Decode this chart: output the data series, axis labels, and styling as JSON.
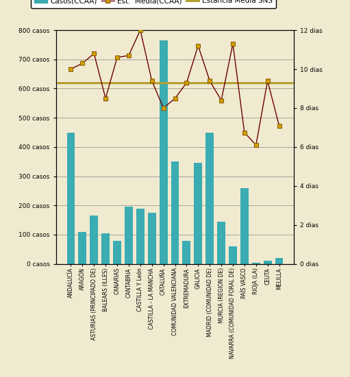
{
  "categories": [
    "ANDALUCÍA",
    "ARAGÓN",
    "ASTURIAS (PRINCIPADO DE)",
    "BALEARS (ILLES)",
    "CANARIAS",
    "CANTABRIA",
    "CASTILLA Y León",
    "CASTILLA - LA MANCHA",
    "CATALUÑA",
    "COMUNIDAD VALENCIANA",
    "EXTREMADURA",
    "GALICIA",
    "MADRID (COMUNIDAD DE)",
    "MURCIA (REGION DE)",
    "NAVARRA (COMUNIDAD FORAL DE)",
    "PAÍS VASCO",
    "RIOJA (LA)",
    "CEUTA",
    "MELILLA"
  ],
  "bar_values": [
    450,
    110,
    165,
    105,
    80,
    195,
    190,
    175,
    765,
    350,
    80,
    345,
    450,
    145,
    60,
    260,
    5,
    10,
    20
  ],
  "line_values": [
    10.0,
    10.3,
    10.8,
    8.5,
    10.6,
    10.7,
    12.0,
    9.4,
    8.0,
    8.5,
    9.3,
    11.2,
    9.4,
    8.4,
    11.3,
    6.75,
    6.1,
    9.4,
    7.1
  ],
  "sns_value": 9.3,
  "bar_color": "#3aacb2",
  "line_color": "#6b0000",
  "line_marker_facecolor": "#d4a000",
  "line_marker_edgecolor": "#8b6000",
  "sns_color": "#b5a030",
  "background_color": "#f0ead0",
  "ylim_left": [
    0,
    800
  ],
  "ylim_right": [
    0,
    12
  ],
  "yticks_left": [
    0,
    100,
    200,
    300,
    400,
    500,
    600,
    700,
    800
  ],
  "ytick_labels_left": [
    "0 casos",
    "100 casos",
    "200 casos",
    "300 casos",
    "400 casos",
    "500 casos",
    "600 casos",
    "700 casos",
    "800 casos"
  ],
  "yticks_right": [
    0,
    2,
    4,
    6,
    8,
    10,
    12
  ],
  "ytick_labels_right": [
    "0 dias",
    "2 dias",
    "4 dias",
    "6 dias",
    "8 dias",
    "10 dias",
    "12 dias"
  ],
  "legend_casos": "Casos(CCAA)",
  "legend_est": "Est.  Media(CCAA)",
  "legend_sns": "Estancia Media SNS"
}
